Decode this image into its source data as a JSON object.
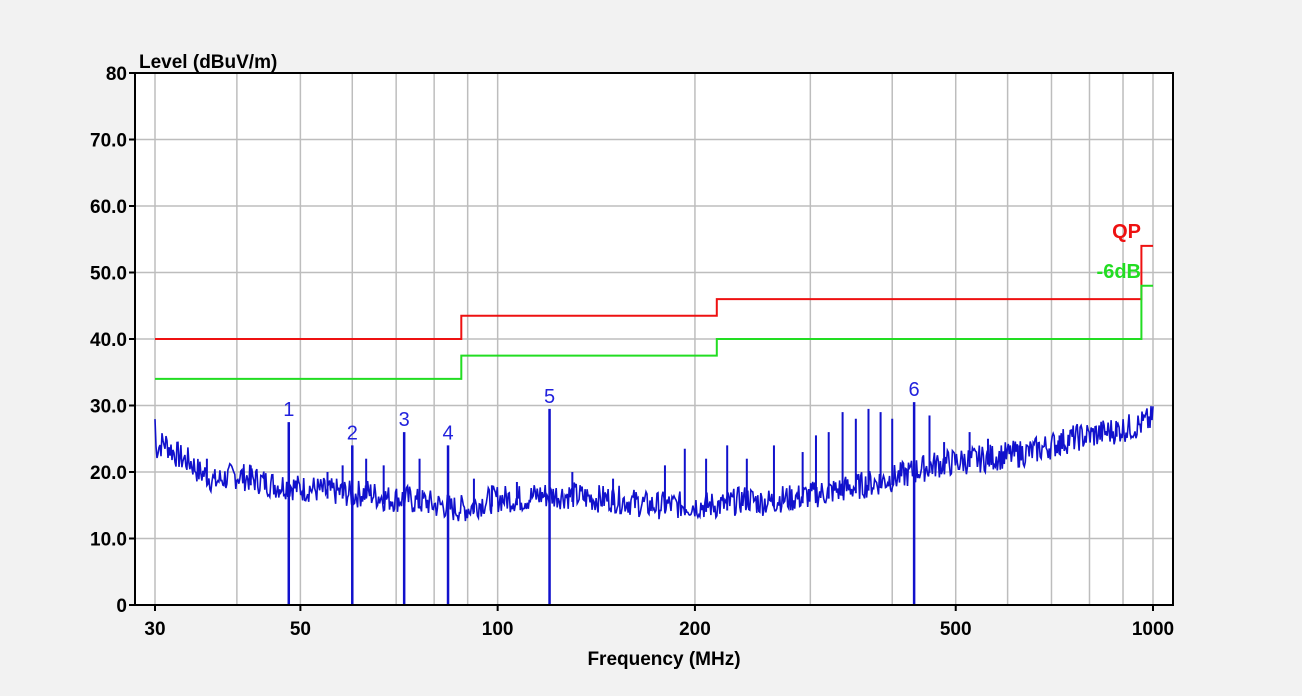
{
  "chart_data": {
    "type": "line",
    "title": "",
    "ylabel": "Level (dBuV/m)",
    "xlabel": "Frequency (MHz)",
    "x_scale": "log",
    "xlim": [
      30,
      1000
    ],
    "ylim": [
      0,
      80
    ],
    "grid": true,
    "x_tick_labels": [
      {
        "value": 30,
        "label": "30"
      },
      {
        "value": 50,
        "label": "50"
      },
      {
        "value": 100,
        "label": "100"
      },
      {
        "value": 200,
        "label": "200"
      },
      {
        "value": 500,
        "label": "500"
      },
      {
        "value": 1000,
        "label": "1000"
      }
    ],
    "x_grid_values": [
      30,
      40,
      50,
      60,
      70,
      80,
      90,
      100,
      200,
      300,
      400,
      500,
      600,
      700,
      800,
      900,
      1000
    ],
    "y_tick_labels": [
      {
        "value": 0,
        "label": "0"
      },
      {
        "value": 10,
        "label": "10.0"
      },
      {
        "value": 20,
        "label": "20.0"
      },
      {
        "value": 30,
        "label": "30.0"
      },
      {
        "value": 40,
        "label": "40.0"
      },
      {
        "value": 50,
        "label": "50.0"
      },
      {
        "value": 60,
        "label": "60.0"
      },
      {
        "value": 70,
        "label": "70.0"
      },
      {
        "value": 80,
        "label": "80"
      }
    ],
    "limit_lines": [
      {
        "label": "QP",
        "color": "#ee1111",
        "points": [
          [
            30,
            40
          ],
          [
            88,
            40
          ],
          [
            88,
            43.5
          ],
          [
            216,
            43.5
          ],
          [
            216,
            46
          ],
          [
            960,
            46
          ],
          [
            960,
            54
          ],
          [
            1000,
            54
          ]
        ]
      },
      {
        "label": "-6dB",
        "color": "#22dd22",
        "points": [
          [
            30,
            34
          ],
          [
            88,
            34
          ],
          [
            88,
            37.5
          ],
          [
            216,
            37.5
          ],
          [
            216,
            40
          ],
          [
            960,
            40
          ],
          [
            960,
            48
          ],
          [
            1000,
            48
          ]
        ]
      }
    ],
    "trace": {
      "color": "#1111cc",
      "points": [
        [
          30,
          23.5
        ],
        [
          31,
          24.5
        ],
        [
          32,
          23
        ],
        [
          33,
          22
        ],
        [
          34,
          21.5
        ],
        [
          35,
          20
        ],
        [
          36,
          19.5
        ],
        [
          37,
          18.5
        ],
        [
          38,
          19
        ],
        [
          40,
          19.5
        ],
        [
          42,
          19
        ],
        [
          44,
          18.5
        ],
        [
          46,
          18
        ],
        [
          48,
          18
        ],
        [
          50,
          17.5
        ],
        [
          52,
          17.5
        ],
        [
          55,
          17
        ],
        [
          58,
          17
        ],
        [
          60,
          16.5
        ],
        [
          63,
          17
        ],
        [
          65,
          16.5
        ],
        [
          68,
          16
        ],
        [
          70,
          16
        ],
        [
          73,
          16
        ],
        [
          75,
          15.5
        ],
        [
          78,
          15.5
        ],
        [
          80,
          15
        ],
        [
          83,
          15
        ],
        [
          85,
          14.5
        ],
        [
          88,
          14.5
        ],
        [
          90,
          14.5
        ],
        [
          95,
          15.5
        ],
        [
          100,
          16
        ],
        [
          105,
          16
        ],
        [
          110,
          16
        ],
        [
          115,
          16.5
        ],
        [
          120,
          16.5
        ],
        [
          130,
          16.5
        ],
        [
          140,
          16
        ],
        [
          150,
          16
        ],
        [
          160,
          15.5
        ],
        [
          170,
          15
        ],
        [
          180,
          15
        ],
        [
          190,
          15
        ],
        [
          200,
          15
        ],
        [
          210,
          15
        ],
        [
          220,
          15
        ],
        [
          230,
          15.5
        ],
        [
          240,
          16
        ],
        [
          250,
          15.5
        ],
        [
          260,
          15.5
        ],
        [
          270,
          16
        ],
        [
          280,
          16
        ],
        [
          300,
          16.5
        ],
        [
          320,
          17
        ],
        [
          340,
          17.5
        ],
        [
          360,
          18
        ],
        [
          380,
          18.5
        ],
        [
          400,
          19
        ],
        [
          430,
          20
        ],
        [
          460,
          21
        ],
        [
          500,
          21.5
        ],
        [
          550,
          22
        ],
        [
          600,
          22.5
        ],
        [
          650,
          23
        ],
        [
          700,
          24
        ],
        [
          750,
          25
        ],
        [
          800,
          25.5
        ],
        [
          850,
          26
        ],
        [
          900,
          26.5
        ],
        [
          950,
          27
        ],
        [
          1000,
          28
        ]
      ],
      "spurs": [
        [
          36,
          22
        ],
        [
          42,
          21
        ],
        [
          55,
          20
        ],
        [
          58,
          21
        ],
        [
          63,
          22
        ],
        [
          67,
          21
        ],
        [
          76,
          22
        ],
        [
          92,
          19
        ],
        [
          98,
          18
        ],
        [
          107,
          18.5
        ],
        [
          130,
          20
        ],
        [
          150,
          19
        ],
        [
          180,
          21
        ],
        [
          193,
          23.5
        ],
        [
          208,
          22
        ],
        [
          224,
          24
        ],
        [
          240,
          22
        ],
        [
          264,
          24
        ],
        [
          292,
          23
        ],
        [
          306,
          25.5
        ],
        [
          320,
          26
        ],
        [
          336,
          29
        ],
        [
          352,
          28
        ],
        [
          368,
          29.5
        ],
        [
          384,
          29
        ],
        [
          400,
          28
        ],
        [
          456,
          28.5
        ],
        [
          480,
          24.5
        ],
        [
          525,
          26
        ],
        [
          560,
          25
        ],
        [
          625,
          24
        ],
        [
          720,
          25.5
        ],
        [
          880,
          27.5
        ]
      ]
    },
    "markers": [
      {
        "label": "1",
        "x": 48,
        "y": 27.5
      },
      {
        "label": "2",
        "x": 60,
        "y": 24
      },
      {
        "label": "3",
        "x": 72,
        "y": 26
      },
      {
        "label": "4",
        "x": 84,
        "y": 24
      },
      {
        "label": "5",
        "x": 120,
        "y": 29.5
      },
      {
        "label": "6",
        "x": 432,
        "y": 30.5
      }
    ]
  }
}
